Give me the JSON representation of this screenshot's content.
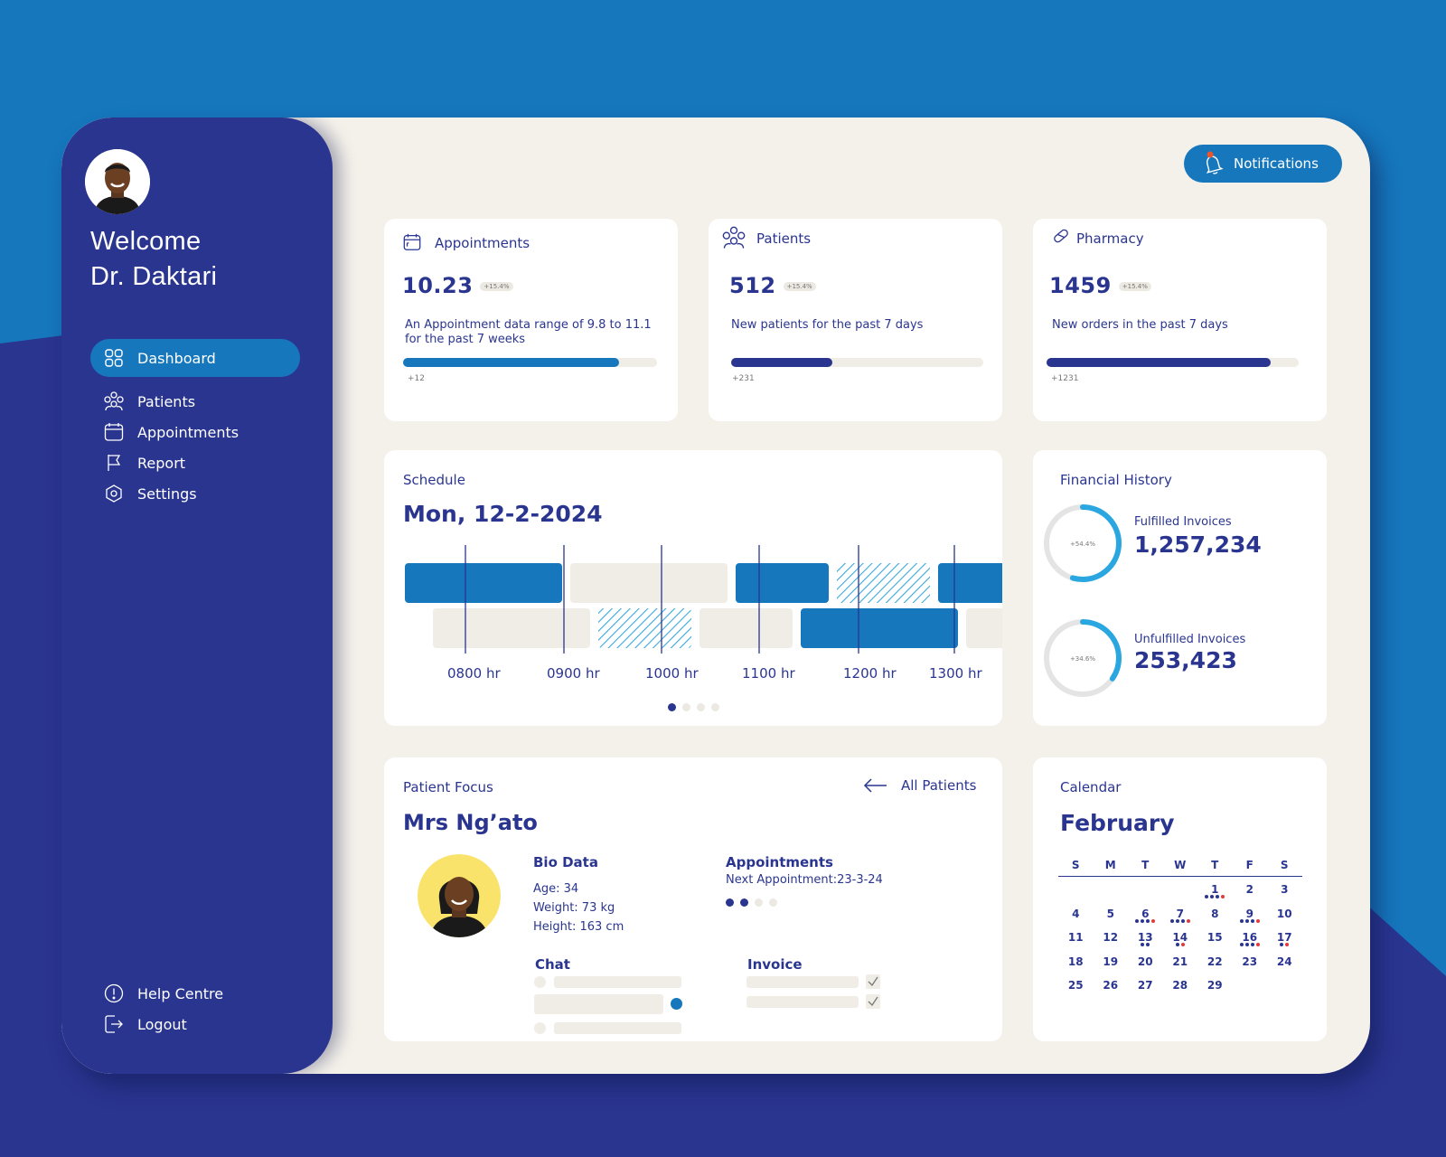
{
  "user": {
    "welcome_line1": "Welcome",
    "welcome_line2": "Dr. Daktari"
  },
  "sidebar": {
    "items": [
      {
        "label": "Dashboard",
        "icon": "grid-icon",
        "active": true
      },
      {
        "label": "Patients",
        "icon": "users-icon"
      },
      {
        "label": "Appointments",
        "icon": "calendar-icon"
      },
      {
        "label": "Report",
        "icon": "flag-icon"
      },
      {
        "label": "Settings",
        "icon": "gear-icon"
      }
    ],
    "bottom_items": [
      {
        "label": "Help Centre",
        "icon": "info-icon"
      },
      {
        "label": "Logout",
        "icon": "logout-icon"
      }
    ]
  },
  "header": {
    "notifications_label": "Notifications"
  },
  "stats": [
    {
      "title": "Appointments",
      "icon": "calendar-icon",
      "value": "10.23",
      "change": "+15.4%",
      "description": "An Appointment data range of 9.8 to 11.1 for the past 7 weeks",
      "progress": 0.85,
      "progress_label": "+12",
      "bar_color": "#1677bd"
    },
    {
      "title": "Patients",
      "icon": "users-icon",
      "value": "512",
      "change": "+15.4%",
      "description": "New patients for the past 7 days",
      "progress": 0.4,
      "progress_label": "+231",
      "bar_color": "#2a3590"
    },
    {
      "title": "Pharmacy",
      "icon": "pill-icon",
      "value": "1459",
      "change": "+15.4%",
      "description": "New orders in the past 7 days",
      "progress": 0.89,
      "progress_label": "+1231",
      "bar_color": "#2a3590"
    }
  ],
  "schedule": {
    "title": "Schedule",
    "date": "Mon, 12-2-2024",
    "hours": [
      "0800 hr",
      "0900 hr",
      "1000 hr",
      "1100 hr",
      "1200 hr",
      "1300 hr"
    ],
    "pages": 4,
    "current_page": 0
  },
  "financial": {
    "title": "Financial History",
    "items": [
      {
        "label": "Fulfilled Invoices",
        "value": "1,257,234",
        "change": "+54.4%",
        "fraction": 0.544
      },
      {
        "label": "Unfulfilled Invoices",
        "value": "253,423",
        "change": "+34.6%",
        "fraction": 0.346
      }
    ]
  },
  "patient_focus": {
    "title": "Patient Focus",
    "all_patients_label": "All Patients",
    "name": "Mrs Ng’ato",
    "bio_title": "Bio Data",
    "age": "Age: 34",
    "weight": "Weight: 73 kg",
    "height": "Height: 163 cm",
    "appointments_title": "Appointments",
    "next_appointment": "Next Appointment:23-3-24",
    "chat_title": "Chat",
    "invoice_title": "Invoice"
  },
  "calendar": {
    "title": "Calendar",
    "month": "February",
    "weekdays": [
      "S",
      "M",
      "T",
      "W",
      "T",
      "F",
      "S"
    ],
    "start_offset": 4,
    "days": 29,
    "event_dots": {
      "1": [
        "#2a3590",
        "#2a3590",
        "#2a3590",
        "#e23b3b"
      ],
      "6": [
        "#2a3590",
        "#2a3590",
        "#2a3590",
        "#e23b3b"
      ],
      "7": [
        "#2a3590",
        "#2a3590",
        "#2a3590",
        "#e23b3b"
      ],
      "9": [
        "#2a3590",
        "#2a3590",
        "#2a3590",
        "#e23b3b"
      ],
      "13": [
        "#2a3590",
        "#2a3590"
      ],
      "14": [
        "#2a3590",
        "#e23b3b"
      ],
      "16": [
        "#2a3590",
        "#2a3590",
        "#2a3590",
        "#e23b3b"
      ],
      "17": [
        "#2a3590",
        "#e23b3b"
      ]
    }
  },
  "colors": {
    "navy": "#2a3590",
    "blue": "#1677bd",
    "sky": "#2aa7e0",
    "cream": "#f4f0ea",
    "red": "#e23b3b"
  }
}
